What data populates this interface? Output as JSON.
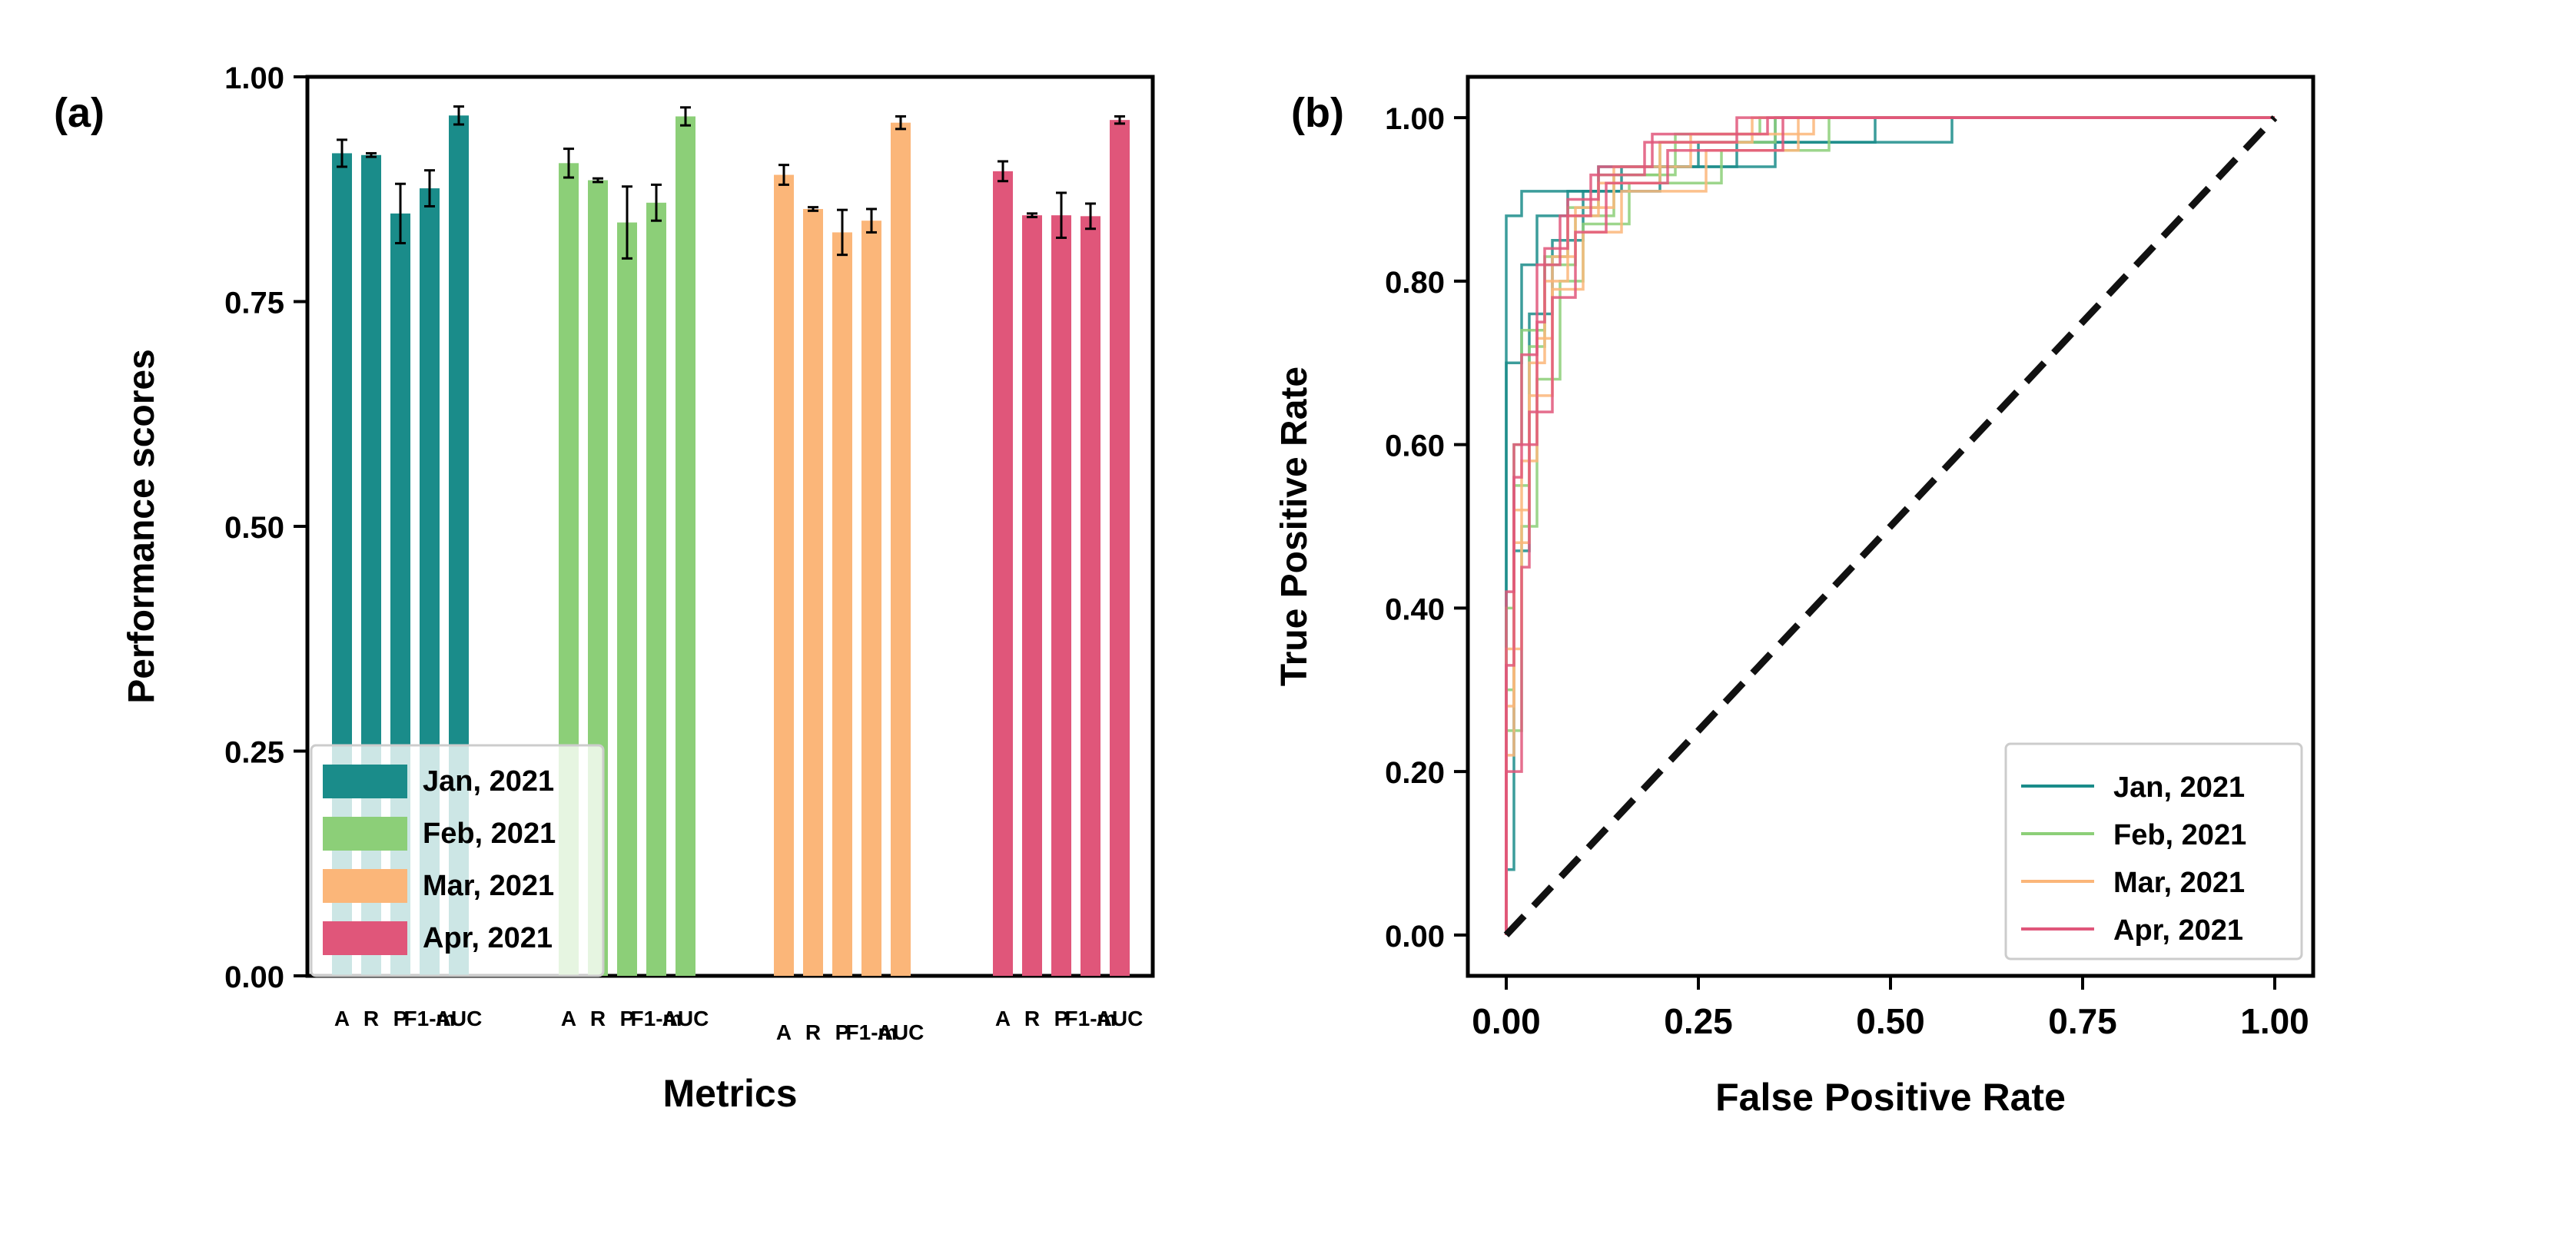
{
  "panel_labels": {
    "a": "(a)",
    "b": "(b)"
  },
  "colors": {
    "jan": "#1a8c8a",
    "feb": "#8ccf78",
    "mar": "#fbb679",
    "apr": "#e0567a",
    "diagonal": "#111111"
  },
  "chart_data": [
    {
      "id": "a",
      "type": "bar",
      "title": "",
      "xlabel": "Metrics",
      "ylabel": "Performance scores",
      "ylim": [
        0,
        1
      ],
      "yticks": [
        0,
        0.25,
        0.5,
        0.75,
        1.0
      ],
      "ytick_labels": [
        "0.00",
        "0.25",
        "0.50",
        "0.75",
        "1.00"
      ],
      "categories": [
        "A",
        "R",
        "P",
        "F1-m",
        "AUC"
      ],
      "legend_position": "lower-left",
      "series": [
        {
          "name": "Jan, 2021",
          "color_key": "jan",
          "values": [
            0.915,
            0.913,
            0.848,
            0.876,
            0.957
          ],
          "errors": [
            0.015,
            0.002,
            0.033,
            0.02,
            0.01
          ]
        },
        {
          "name": "Feb, 2021",
          "color_key": "feb",
          "values": [
            0.904,
            0.885,
            0.838,
            0.86,
            0.956
          ],
          "errors": [
            0.016,
            0.002,
            0.04,
            0.02,
            0.01
          ]
        },
        {
          "name": "Mar, 2021",
          "color_key": "mar",
          "values": [
            0.891,
            0.853,
            0.827,
            0.84,
            0.949
          ],
          "errors": [
            0.011,
            0.002,
            0.025,
            0.013,
            0.007
          ]
        },
        {
          "name": "Apr, 2021",
          "color_key": "apr",
          "values": [
            0.895,
            0.846,
            0.846,
            0.845,
            0.952
          ],
          "errors": [
            0.011,
            0.002,
            0.025,
            0.014,
            0.004
          ]
        }
      ]
    },
    {
      "id": "b",
      "type": "line",
      "title": "",
      "xlabel": "False Positive Rate",
      "ylabel": "True Positive Rate",
      "xlim": [
        -0.05,
        1.05
      ],
      "ylim": [
        -0.05,
        1.05
      ],
      "ticks": [
        0,
        0.25,
        0.5,
        0.75,
        1.0
      ],
      "xtick_labels": [
        "0.00",
        "0.25",
        "0.50",
        "0.75",
        "1.00"
      ],
      "yticks": [
        0,
        0.2,
        0.4,
        0.6,
        0.8,
        1.0
      ],
      "ytick_labels": [
        "0.00",
        "0.20",
        "0.40",
        "0.60",
        "0.80",
        "1.00"
      ],
      "legend_position": "lower-right",
      "diagonal": {
        "x": [
          0,
          1
        ],
        "y": [
          0,
          1
        ],
        "style": "dashed"
      },
      "series": [
        {
          "name": "Jan, 2021",
          "color_key": "jan",
          "curves": [
            {
              "x": [
                0,
                0,
                0.02,
                0.02,
                0.06,
                0.06,
                0.12,
                0.12,
                0.25,
                0.25,
                0.45,
                0.45,
                0.58,
                0.58,
                1.0
              ],
              "y": [
                0,
                0.88,
                0.88,
                0.91,
                0.91,
                0.91,
                0.91,
                0.94,
                0.94,
                0.97,
                0.97,
                0.97,
                0.97,
                1.0,
                1.0
              ]
            },
            {
              "x": [
                0,
                0,
                0.02,
                0.02,
                0.04,
                0.04,
                0.08,
                0.08,
                0.15,
                0.15,
                0.3,
                0.3,
                0.48,
                0.48,
                1.0
              ],
              "y": [
                0,
                0.7,
                0.7,
                0.82,
                0.82,
                0.88,
                0.88,
                0.91,
                0.91,
                0.94,
                0.94,
                0.97,
                0.97,
                1.0,
                1.0
              ]
            },
            {
              "x": [
                0,
                0,
                0.01,
                0.01,
                0.03,
                0.03,
                0.06,
                0.06,
                0.1,
                0.1,
                0.2,
                0.2,
                0.35,
                0.35,
                1.0
              ],
              "y": [
                0,
                0.08,
                0.08,
                0.47,
                0.47,
                0.76,
                0.76,
                0.85,
                0.85,
                0.91,
                0.91,
                0.94,
                0.94,
                1.0,
                1.0
              ]
            }
          ]
        },
        {
          "name": "Feb, 2021",
          "color_key": "feb",
          "curves": [
            {
              "x": [
                0,
                0,
                0.01,
                0.01,
                0.03,
                0.03,
                0.05,
                0.05,
                0.08,
                0.08,
                0.12,
                0.12,
                0.2,
                0.2,
                0.35,
                0.35,
                1.0
              ],
              "y": [
                0,
                0.3,
                0.3,
                0.55,
                0.55,
                0.72,
                0.72,
                0.83,
                0.83,
                0.89,
                0.89,
                0.93,
                0.93,
                0.97,
                0.97,
                1.0,
                1.0
              ]
            },
            {
              "x": [
                0,
                0,
                0.02,
                0.02,
                0.04,
                0.04,
                0.07,
                0.07,
                0.1,
                0.1,
                0.16,
                0.16,
                0.28,
                0.28,
                0.42,
                0.42,
                1.0
              ],
              "y": [
                0,
                0.25,
                0.25,
                0.5,
                0.5,
                0.68,
                0.68,
                0.8,
                0.8,
                0.87,
                0.87,
                0.92,
                0.92,
                0.96,
                0.96,
                1.0,
                1.0
              ]
            },
            {
              "x": [
                0,
                0,
                0.01,
                0.01,
                0.02,
                0.02,
                0.05,
                0.05,
                0.09,
                0.09,
                0.14,
                0.14,
                0.22,
                0.22,
                0.33,
                0.33,
                1.0
              ],
              "y": [
                0,
                0.4,
                0.4,
                0.6,
                0.6,
                0.74,
                0.74,
                0.82,
                0.82,
                0.88,
                0.88,
                0.93,
                0.93,
                0.98,
                0.98,
                1.0,
                1.0
              ]
            }
          ]
        },
        {
          "name": "Mar, 2021",
          "color_key": "mar",
          "curves": [
            {
              "x": [
                0,
                0,
                0.01,
                0.01,
                0.03,
                0.03,
                0.05,
                0.05,
                0.08,
                0.08,
                0.12,
                0.12,
                0.2,
                0.2,
                0.32,
                0.32,
                1.0
              ],
              "y": [
                0,
                0.28,
                0.28,
                0.52,
                0.52,
                0.7,
                0.7,
                0.8,
                0.8,
                0.88,
                0.88,
                0.92,
                0.92,
                0.97,
                0.97,
                1.0,
                1.0
              ]
            },
            {
              "x": [
                0,
                0,
                0.02,
                0.02,
                0.04,
                0.04,
                0.06,
                0.06,
                0.09,
                0.09,
                0.14,
                0.14,
                0.24,
                0.24,
                0.4,
                0.4,
                1.0
              ],
              "y": [
                0,
                0.35,
                0.35,
                0.58,
                0.58,
                0.73,
                0.73,
                0.83,
                0.83,
                0.89,
                0.89,
                0.94,
                0.94,
                0.98,
                0.98,
                1.0,
                1.0
              ]
            },
            {
              "x": [
                0,
                0,
                0.01,
                0.01,
                0.03,
                0.03,
                0.06,
                0.06,
                0.1,
                0.1,
                0.15,
                0.15,
                0.26,
                0.26,
                0.38,
                0.38,
                1.0
              ],
              "y": [
                0,
                0.22,
                0.22,
                0.48,
                0.48,
                0.66,
                0.66,
                0.79,
                0.79,
                0.86,
                0.86,
                0.91,
                0.91,
                0.96,
                0.96,
                1.0,
                1.0
              ]
            }
          ]
        },
        {
          "name": "Apr, 2021",
          "color_key": "apr",
          "curves": [
            {
              "x": [
                0,
                0,
                0.01,
                0.01,
                0.02,
                0.02,
                0.04,
                0.04,
                0.07,
                0.07,
                0.11,
                0.11,
                0.18,
                0.18,
                0.3,
                0.3,
                1.0
              ],
              "y": [
                0,
                0.33,
                0.33,
                0.56,
                0.56,
                0.71,
                0.71,
                0.82,
                0.82,
                0.88,
                0.88,
                0.93,
                0.93,
                0.97,
                0.97,
                1.0,
                1.0
              ]
            },
            {
              "x": [
                0,
                0,
                0.02,
                0.02,
                0.03,
                0.03,
                0.06,
                0.06,
                0.09,
                0.09,
                0.13,
                0.13,
                0.21,
                0.21,
                0.36,
                0.36,
                1.0
              ],
              "y": [
                0,
                0.2,
                0.2,
                0.45,
                0.45,
                0.64,
                0.64,
                0.78,
                0.78,
                0.86,
                0.86,
                0.92,
                0.92,
                0.96,
                0.96,
                1.0,
                1.0
              ]
            },
            {
              "x": [
                0,
                0,
                0.01,
                0.01,
                0.04,
                0.04,
                0.05,
                0.05,
                0.08,
                0.08,
                0.12,
                0.12,
                0.19,
                0.19,
                0.34,
                0.34,
                1.0
              ],
              "y": [
                0,
                0.42,
                0.42,
                0.6,
                0.6,
                0.75,
                0.75,
                0.84,
                0.84,
                0.9,
                0.9,
                0.94,
                0.94,
                0.98,
                0.98,
                1.0,
                1.0
              ]
            }
          ]
        }
      ]
    }
  ]
}
